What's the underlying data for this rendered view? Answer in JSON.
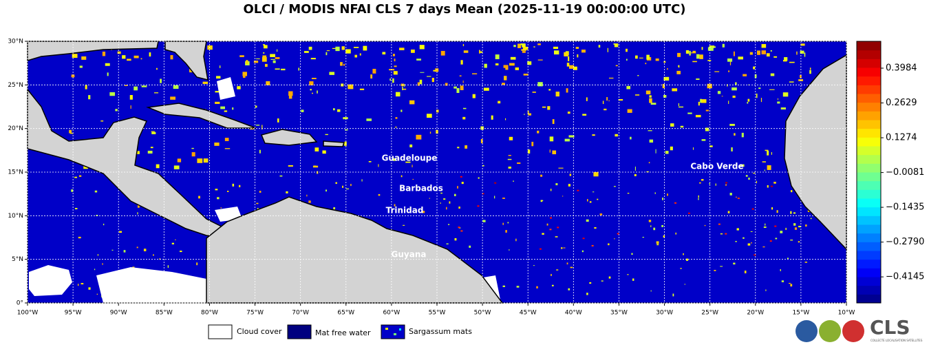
{
  "title": "OLCI / MODIS NFAI CLS 7 days Mean (2025-11-19 00:00:00 UTC)",
  "map": {
    "lonlim": [
      -100,
      -10
    ],
    "latlim": [
      0,
      30
    ],
    "lonticks": [
      {
        "value": -100,
        "label": "100°W"
      },
      {
        "value": -95,
        "label": "95°W"
      },
      {
        "value": -90,
        "label": "90°W"
      },
      {
        "value": -85,
        "label": "85°W"
      },
      {
        "value": -80,
        "label": "80°W"
      },
      {
        "value": -75,
        "label": "75°W"
      },
      {
        "value": -70,
        "label": "70°W"
      },
      {
        "value": -65,
        "label": "65°W"
      },
      {
        "value": -60,
        "label": "60°W"
      },
      {
        "value": -55,
        "label": "55°W"
      },
      {
        "value": -50,
        "label": "50°W"
      },
      {
        "value": -45,
        "label": "45°W"
      },
      {
        "value": -40,
        "label": "40°W"
      },
      {
        "value": -35,
        "label": "35°W"
      },
      {
        "value": -30,
        "label": "30°W"
      },
      {
        "value": -25,
        "label": "25°W"
      },
      {
        "value": -20,
        "label": "20°W"
      },
      {
        "value": -15,
        "label": "15°W"
      },
      {
        "value": -10,
        "label": "10°W"
      }
    ],
    "latticks": [
      {
        "value": 0,
        "label": "0°"
      },
      {
        "value": 5,
        "label": "5°N"
      },
      {
        "value": 10,
        "label": "10°N"
      },
      {
        "value": 15,
        "label": "15°N"
      },
      {
        "value": 20,
        "label": "20°N"
      },
      {
        "value": 25,
        "label": "25°N"
      },
      {
        "value": 30,
        "label": "30°N"
      }
    ],
    "places": [
      "Guadeloupe",
      "Barbados",
      "Trinidad",
      "Guyana",
      "Cabo Verde"
    ]
  },
  "colorbar": {
    "clim": [
      -0.516,
      0.503
    ],
    "ticks": [
      0.3984,
      0.2629,
      0.1274,
      {
        "value": -0.0081,
        "label": "−0.0081"
      },
      {
        "value": -0.1435,
        "label": "−0.1435"
      },
      {
        "value": -0.279,
        "label": "−0.2790"
      },
      {
        "value": -0.4145,
        "label": "−0.4145"
      }
    ]
  },
  "legend": [
    "Cloud cover",
    "Mat free water",
    "Sargassum mats"
  ],
  "logo": {
    "name": "CLS",
    "tagline": "COLLECTE LOCALISATION SATELLITES"
  }
}
